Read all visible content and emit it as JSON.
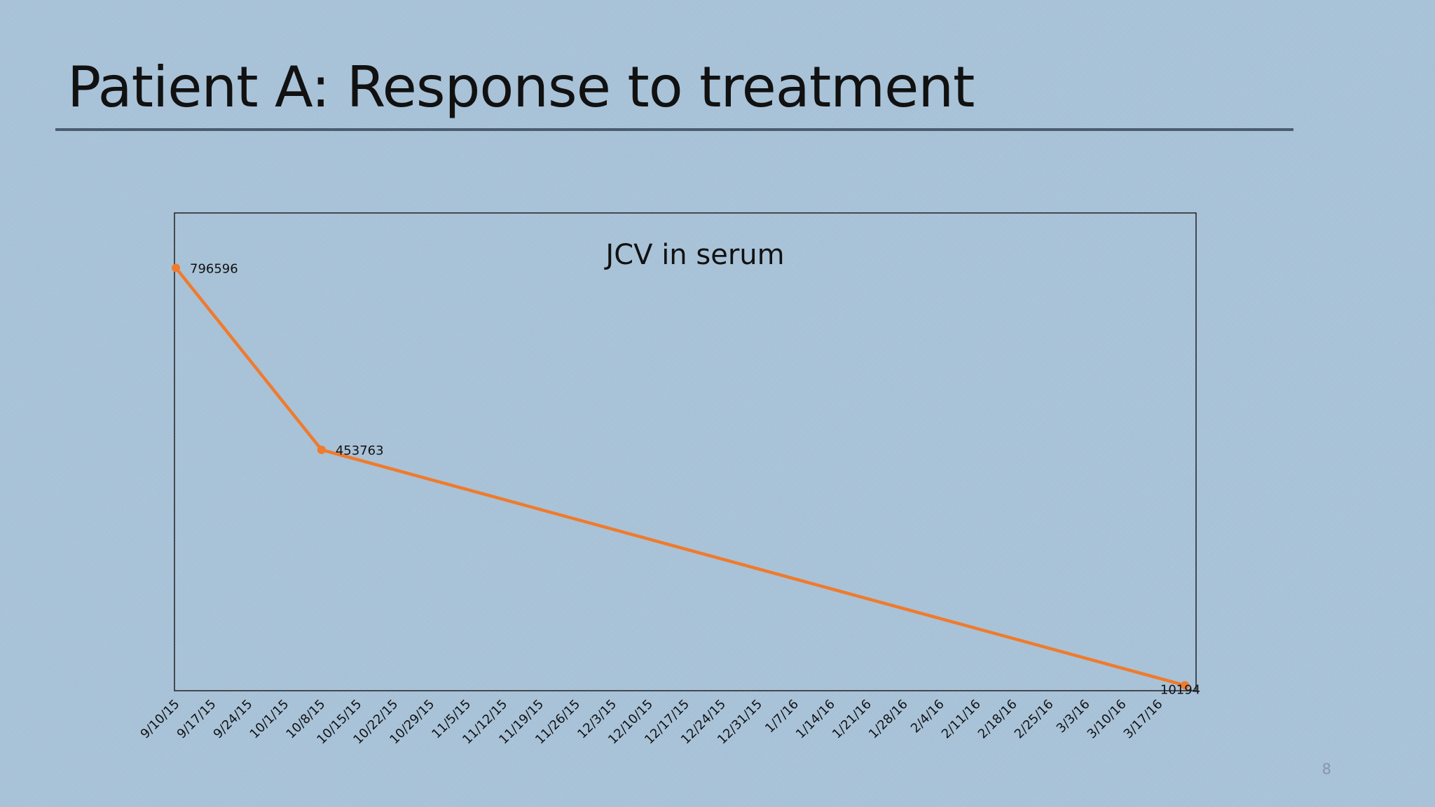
{
  "slide": {
    "title": "Patient A: Response to treatment",
    "page_number": "8"
  },
  "colors": {
    "background": "#a9c3d9",
    "series_line": "#ef7b2d",
    "title_rule": "#4a5c70",
    "axis": "#222222"
  },
  "chart_data": {
    "type": "line",
    "title": "JCV in serum",
    "xlabel": "",
    "ylabel": "",
    "grid": false,
    "legend": "none",
    "x_tick_labels": [
      "9/10/15",
      "9/17/15",
      "9/24/15",
      "10/1/15",
      "10/8/15",
      "10/15/15",
      "10/22/15",
      "10/29/15",
      "11/5/15",
      "11/12/15",
      "11/19/15",
      "11/26/15",
      "12/3/15",
      "12/10/15",
      "12/17/15",
      "12/24/15",
      "12/31/15",
      "1/7/16",
      "1/14/16",
      "1/21/16",
      "1/28/16",
      "2/4/16",
      "2/11/16",
      "2/18/16",
      "2/25/16",
      "3/3/16",
      "3/10/16",
      "3/17/16"
    ],
    "xlim": [
      "9/10/15",
      "3/24/16"
    ],
    "ylim": [
      0,
      900000
    ],
    "series": [
      {
        "points": [
          {
            "x": "9/10/15",
            "y": 796596,
            "label": "796596"
          },
          {
            "x": "10/8/15",
            "y": 453763,
            "label": "453763"
          },
          {
            "x": "3/22/16",
            "y": 10194,
            "label": "10194"
          }
        ]
      }
    ]
  }
}
